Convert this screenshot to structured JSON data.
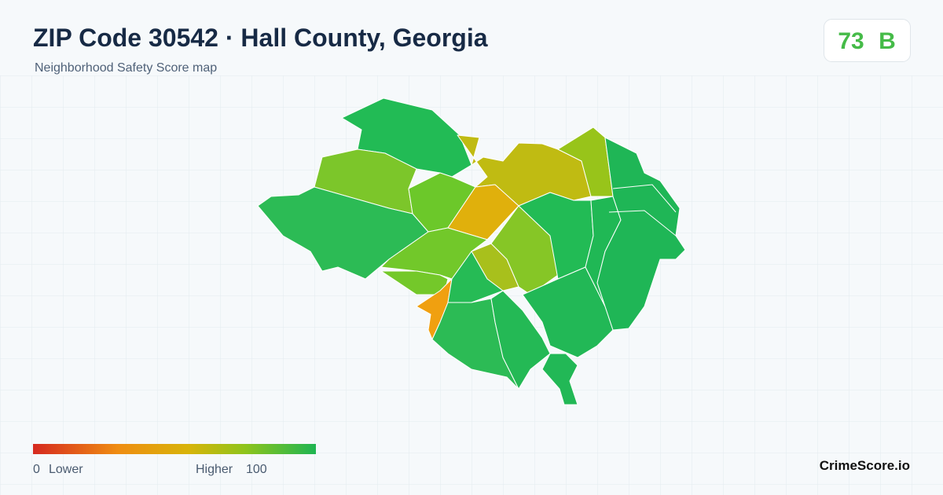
{
  "header": {
    "title": "ZIP Code 30542 · Hall County, Georgia",
    "subtitle": "Neighborhood Safety Score map"
  },
  "score": {
    "value": 73,
    "grade": "B"
  },
  "legend": {
    "min": 0,
    "min_label": "Lower",
    "max_label": "Higher",
    "max": 100
  },
  "brand": "CrimeScore.io"
}
